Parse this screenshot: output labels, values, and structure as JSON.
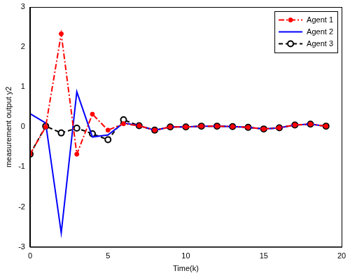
{
  "chart_data": {
    "type": "line",
    "x_label": "Time(k)",
    "y_label": "measurement output y2",
    "x": [
      0,
      1,
      2,
      3,
      4,
      5,
      6,
      7,
      8,
      9,
      10,
      11,
      12,
      13,
      14,
      15,
      16,
      17,
      18,
      19
    ],
    "series": [
      {
        "name": "Agent 1",
        "color": "#ff0000",
        "marker": "circle",
        "line_style": "dashdot",
        "values": [
          -0.68,
          0.0,
          2.33,
          -0.68,
          0.32,
          -0.08,
          0.08,
          0.03,
          -0.08,
          0.0,
          0.0,
          0.02,
          0.02,
          0.01,
          -0.01,
          -0.05,
          -0.02,
          0.05,
          0.07,
          0.02
        ]
      },
      {
        "name": "Agent 2",
        "color": "#0000ff",
        "marker": "none",
        "line_style": "solid",
        "values": [
          0.33,
          0.1,
          -2.65,
          0.88,
          -0.25,
          -0.2,
          0.1,
          0.03,
          -0.08,
          0.0,
          0.0,
          0.02,
          0.02,
          0.01,
          -0.01,
          -0.05,
          -0.02,
          0.05,
          0.07,
          0.02
        ]
      },
      {
        "name": "Agent 3",
        "color": "#000000",
        "marker": "open_circle",
        "line_style": "dashed",
        "values": [
          -0.68,
          0.02,
          -0.15,
          -0.03,
          -0.17,
          -0.32,
          0.18,
          0.03,
          -0.08,
          0.0,
          0.0,
          0.02,
          0.02,
          0.01,
          -0.01,
          -0.05,
          -0.02,
          0.05,
          0.07,
          0.02
        ]
      }
    ],
    "xlim": [
      0,
      20
    ],
    "xticks": [
      0,
      5,
      10,
      15,
      20
    ],
    "ylim": [
      -3,
      3
    ],
    "yticks": [
      -3,
      -2,
      -1,
      0,
      1,
      2,
      3
    ],
    "grid": false,
    "legend": "upper right"
  }
}
